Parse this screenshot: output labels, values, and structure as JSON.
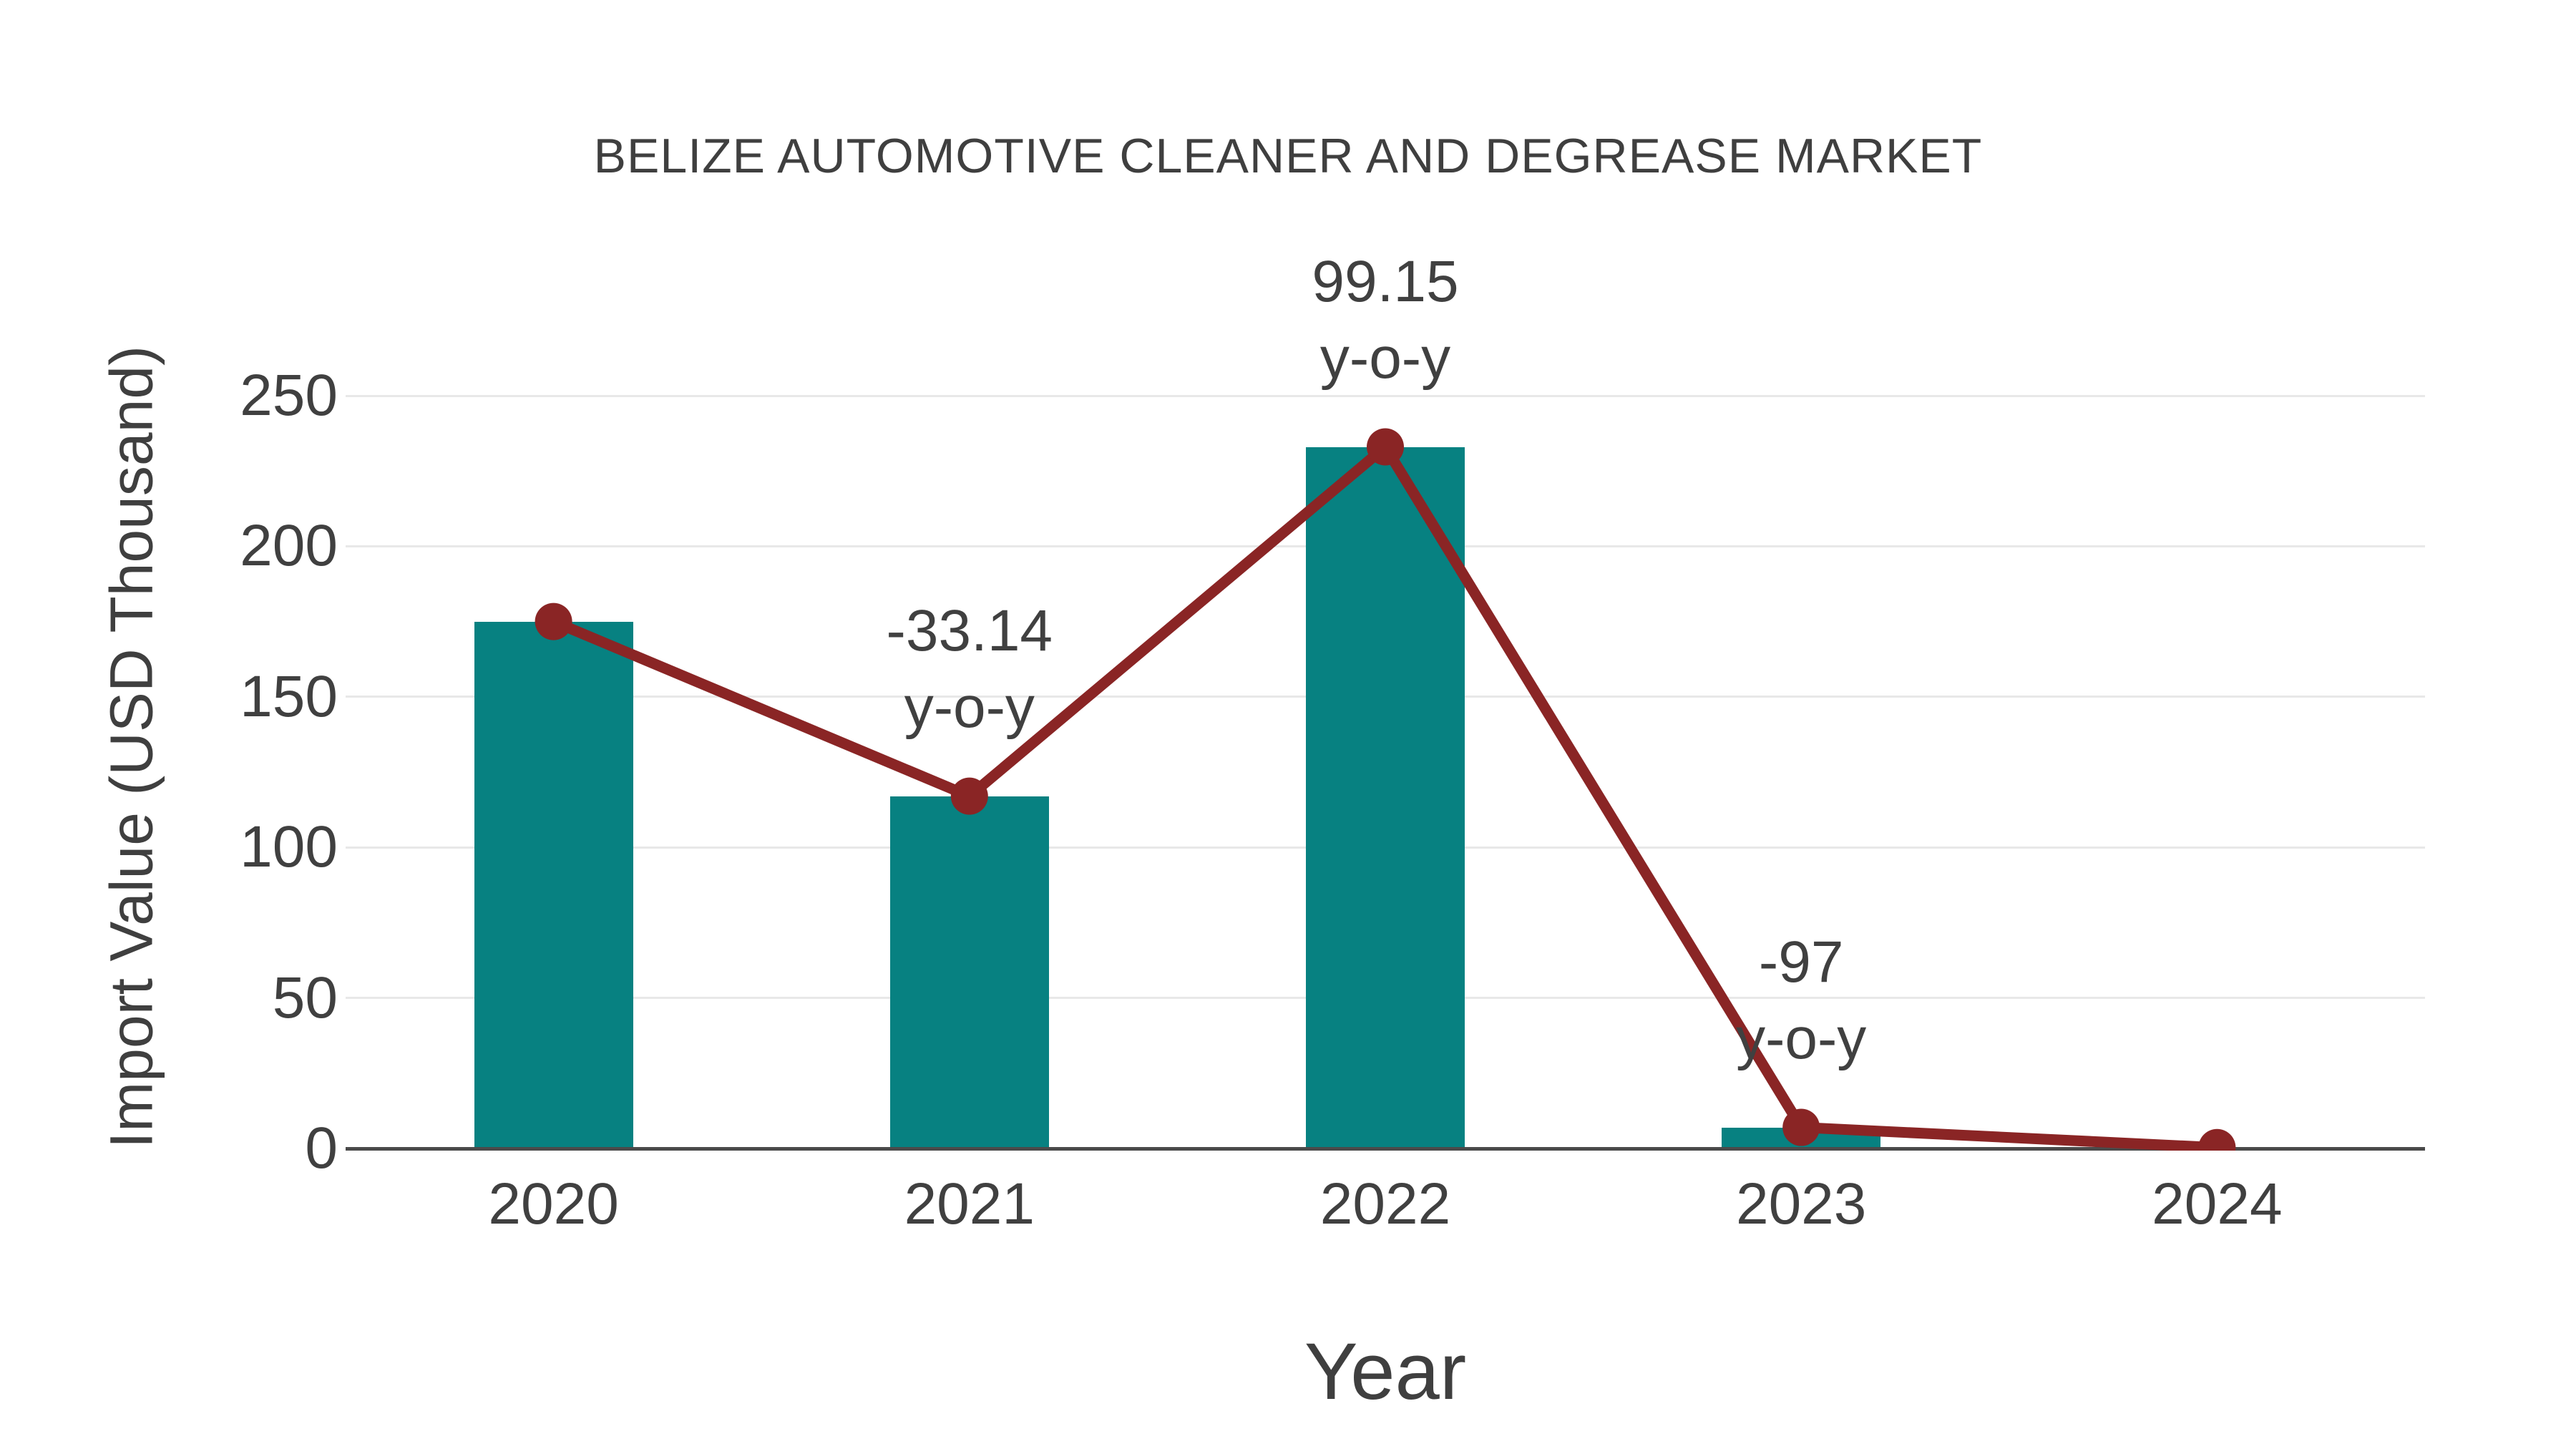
{
  "chart": {
    "title": "BELIZE AUTOMOTIVE CLEANER AND DEGREASE MARKET",
    "x_axis_title": "Year",
    "y_axis_title": "Import Value (USD Thousand)"
  },
  "chart_data": {
    "type": "bar",
    "title": "BELIZE AUTOMOTIVE CLEANER AND DEGREASE MARKET",
    "xlabel": "Year",
    "ylabel": "Import Value (USD Thousand)",
    "categories": [
      "2020",
      "2021",
      "2022",
      "2023",
      "2024"
    ],
    "series": [
      {
        "name": "import-value-bars",
        "type": "bar",
        "color": "#078181",
        "values": [
          175,
          117,
          233,
          7,
          0.3
        ]
      },
      {
        "name": "import-value-trend",
        "type": "line",
        "color": "#8a2525",
        "values": [
          175,
          117,
          233,
          7,
          0.3
        ]
      }
    ],
    "annotations": [
      {
        "category": "2021",
        "value_text": "-33.14",
        "suffix_text": "y-o-y"
      },
      {
        "category": "2022",
        "value_text": "99.15",
        "suffix_text": "y-o-y"
      },
      {
        "category": "2023",
        "value_text": "-97",
        "suffix_text": "y-o-y"
      }
    ],
    "y_ticks": [
      0,
      50,
      100,
      150,
      200,
      250
    ],
    "ylim": [
      0,
      260
    ],
    "grid": true,
    "legend_position": "none",
    "colors": {
      "bar": "#078181",
      "line": "#8a2525",
      "marker": "#8a2525",
      "text": "#404040",
      "gridline": "#e8e8e8",
      "axis_line": "#4a4a4a",
      "background": "#ffffff"
    }
  }
}
